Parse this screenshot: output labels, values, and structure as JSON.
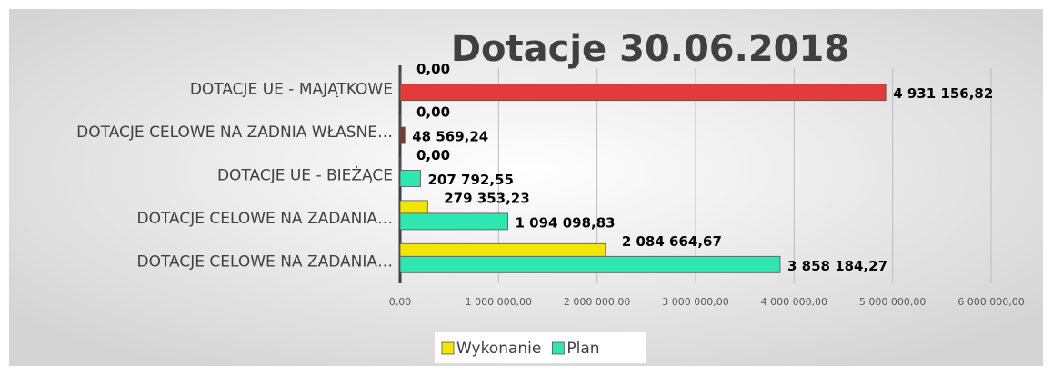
{
  "chart_data": {
    "type": "hbar",
    "title": "Dotacje 30.06.2018",
    "categories": [
      "DOTACJE UE - MAJĄTKOWE",
      "DOTACJE CELOWE NA ZADNIA WŁASNE…",
      "DOTACJE UE - BIEŻĄCE",
      "DOTACJE CELOWE NA ZADANIA…",
      "DOTACJE CELOWE NA ZADANIA…"
    ],
    "series": [
      {
        "name": "Wykonanie",
        "color": "#f2e600",
        "values": [
          0,
          0,
          0,
          279353.23,
          2084664.67
        ],
        "value_labels": [
          "0,00",
          "0,00",
          "0,00",
          "279 353,23",
          "2 084 664,67"
        ]
      },
      {
        "name": "Plan",
        "color": "#2ee6b0",
        "colors": [
          "#e23b3b",
          "#7a3a32",
          "#2ee6b0",
          "#2ee6b0",
          "#2ee6b0"
        ],
        "values": [
          4931156.82,
          48569.24,
          207792.55,
          1094098.83,
          3858184.27
        ],
        "value_labels": [
          "4 931 156,82",
          "48 569,24",
          "207 792,55",
          "1 094 098,83",
          "3 858 184,27"
        ]
      }
    ],
    "xlim": [
      0,
      6000000
    ],
    "xticks": [
      {
        "value": 0,
        "label": "0,00"
      },
      {
        "value": 1000000,
        "label": "1 000 000,00"
      },
      {
        "value": 2000000,
        "label": "2 000 000,00"
      },
      {
        "value": 3000000,
        "label": "3 000 000,00"
      },
      {
        "value": 4000000,
        "label": "4 000 000,00"
      },
      {
        "value": 5000000,
        "label": "5 000 000,00"
      },
      {
        "value": 6000000,
        "label": "6 000 000,00"
      }
    ],
    "grid": true,
    "legend": "bottom"
  }
}
